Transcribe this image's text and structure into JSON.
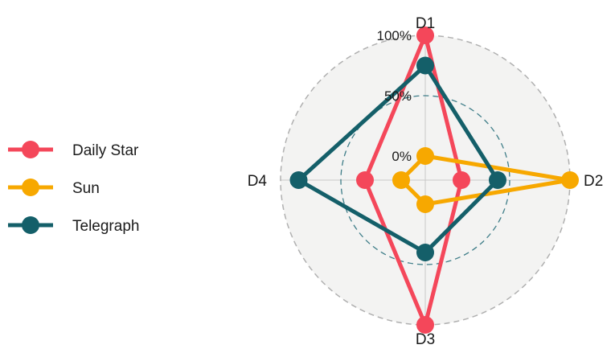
{
  "chart_data": {
    "type": "radar",
    "axes": [
      "D1",
      "D2",
      "D3",
      "D4"
    ],
    "rings": [
      {
        "value": 0,
        "label": "0%"
      },
      {
        "value": 50,
        "label": "50%"
      },
      {
        "value": 100,
        "label": "100%"
      }
    ],
    "rlim": [
      -20,
      100
    ],
    "series": [
      {
        "name": "Daily Star",
        "color": "#f4475a",
        "values": [
          100,
          10,
          100,
          30
        ]
      },
      {
        "name": "Sun",
        "color": "#f7a800",
        "values": [
          0,
          100,
          0,
          0
        ]
      },
      {
        "name": "Telegraph",
        "color": "#145f69",
        "values": [
          75,
          40,
          40,
          85
        ]
      }
    ],
    "legend_position": "left",
    "grid": true,
    "colors": {
      "panel": "#f3f3f2",
      "outer_ring": "#b0b0b0",
      "mid_ring": "#3e7d88",
      "axis_lines": "#c8c8c8"
    }
  }
}
